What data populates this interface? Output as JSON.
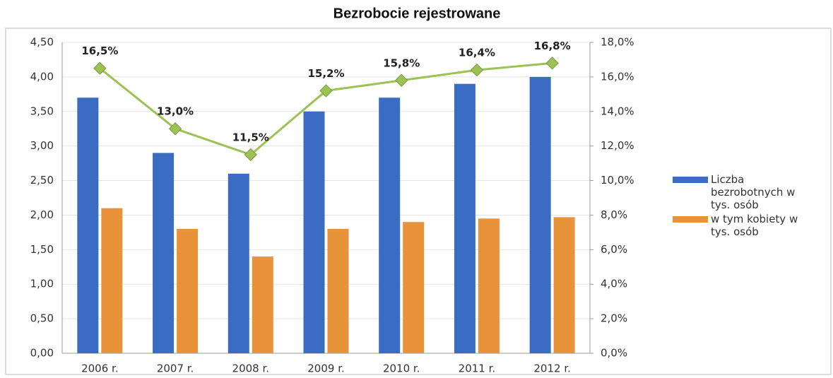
{
  "chart_data": {
    "type": "bar",
    "title": "Bezrobocie rejestrowane",
    "categories": [
      "2006 r.",
      "2007 r.",
      "2008 r.",
      "2009 r.",
      "2010 r.",
      "2011 r.",
      "2012 r."
    ],
    "series": [
      {
        "name": "Liczba bezrobotnych w tys. osób",
        "color": "#3a6cc4",
        "values": [
          3.7,
          2.9,
          2.6,
          3.5,
          3.7,
          3.9,
          4.0
        ]
      },
      {
        "name": "w tym kobiety w tys. osób",
        "color": "#e8923a",
        "values": [
          2.1,
          1.8,
          1.4,
          1.8,
          1.9,
          1.95,
          1.97
        ]
      },
      {
        "type": "line",
        "axis": "y2",
        "color": "#9cc254",
        "values": [
          16.5,
          13.0,
          11.5,
          15.2,
          15.8,
          16.4,
          16.8
        ],
        "value_labels": [
          "16,5%",
          "13,0%",
          "11,5%",
          "15,2%",
          "15,8%",
          "16,4%",
          "16,8%"
        ]
      }
    ],
    "ylim": [
      0,
      4.5
    ],
    "yticks": [
      {
        "value": 0,
        "label": "0,00"
      },
      {
        "value": 0.5,
        "label": "0,50"
      },
      {
        "value": 1,
        "label": "1,00"
      },
      {
        "value": 1.5,
        "label": "1,50"
      },
      {
        "value": 2,
        "label": "2,00"
      },
      {
        "value": 2.5,
        "label": "2,50"
      },
      {
        "value": 3,
        "label": "3,00"
      },
      {
        "value": 3.5,
        "label": "3,50"
      },
      {
        "value": 4,
        "label": "4,00"
      },
      {
        "value": 4.5,
        "label": "4,50"
      }
    ],
    "y2lim": [
      0,
      18
    ],
    "y2ticks": [
      {
        "value": 0,
        "label": "0,0%"
      },
      {
        "value": 2,
        "label": "2,0%"
      },
      {
        "value": 4,
        "label": "4,0%"
      },
      {
        "value": 6,
        "label": "6,0%"
      },
      {
        "value": 8,
        "label": "8,0%"
      },
      {
        "value": 10,
        "label": "10,0%"
      },
      {
        "value": 12,
        "label": "12,0%"
      },
      {
        "value": 14,
        "label": "14,0%"
      },
      {
        "value": 16,
        "label": "16,0%"
      },
      {
        "value": 18,
        "label": "18,0%"
      }
    ],
    "grid": true,
    "legend": "right"
  }
}
